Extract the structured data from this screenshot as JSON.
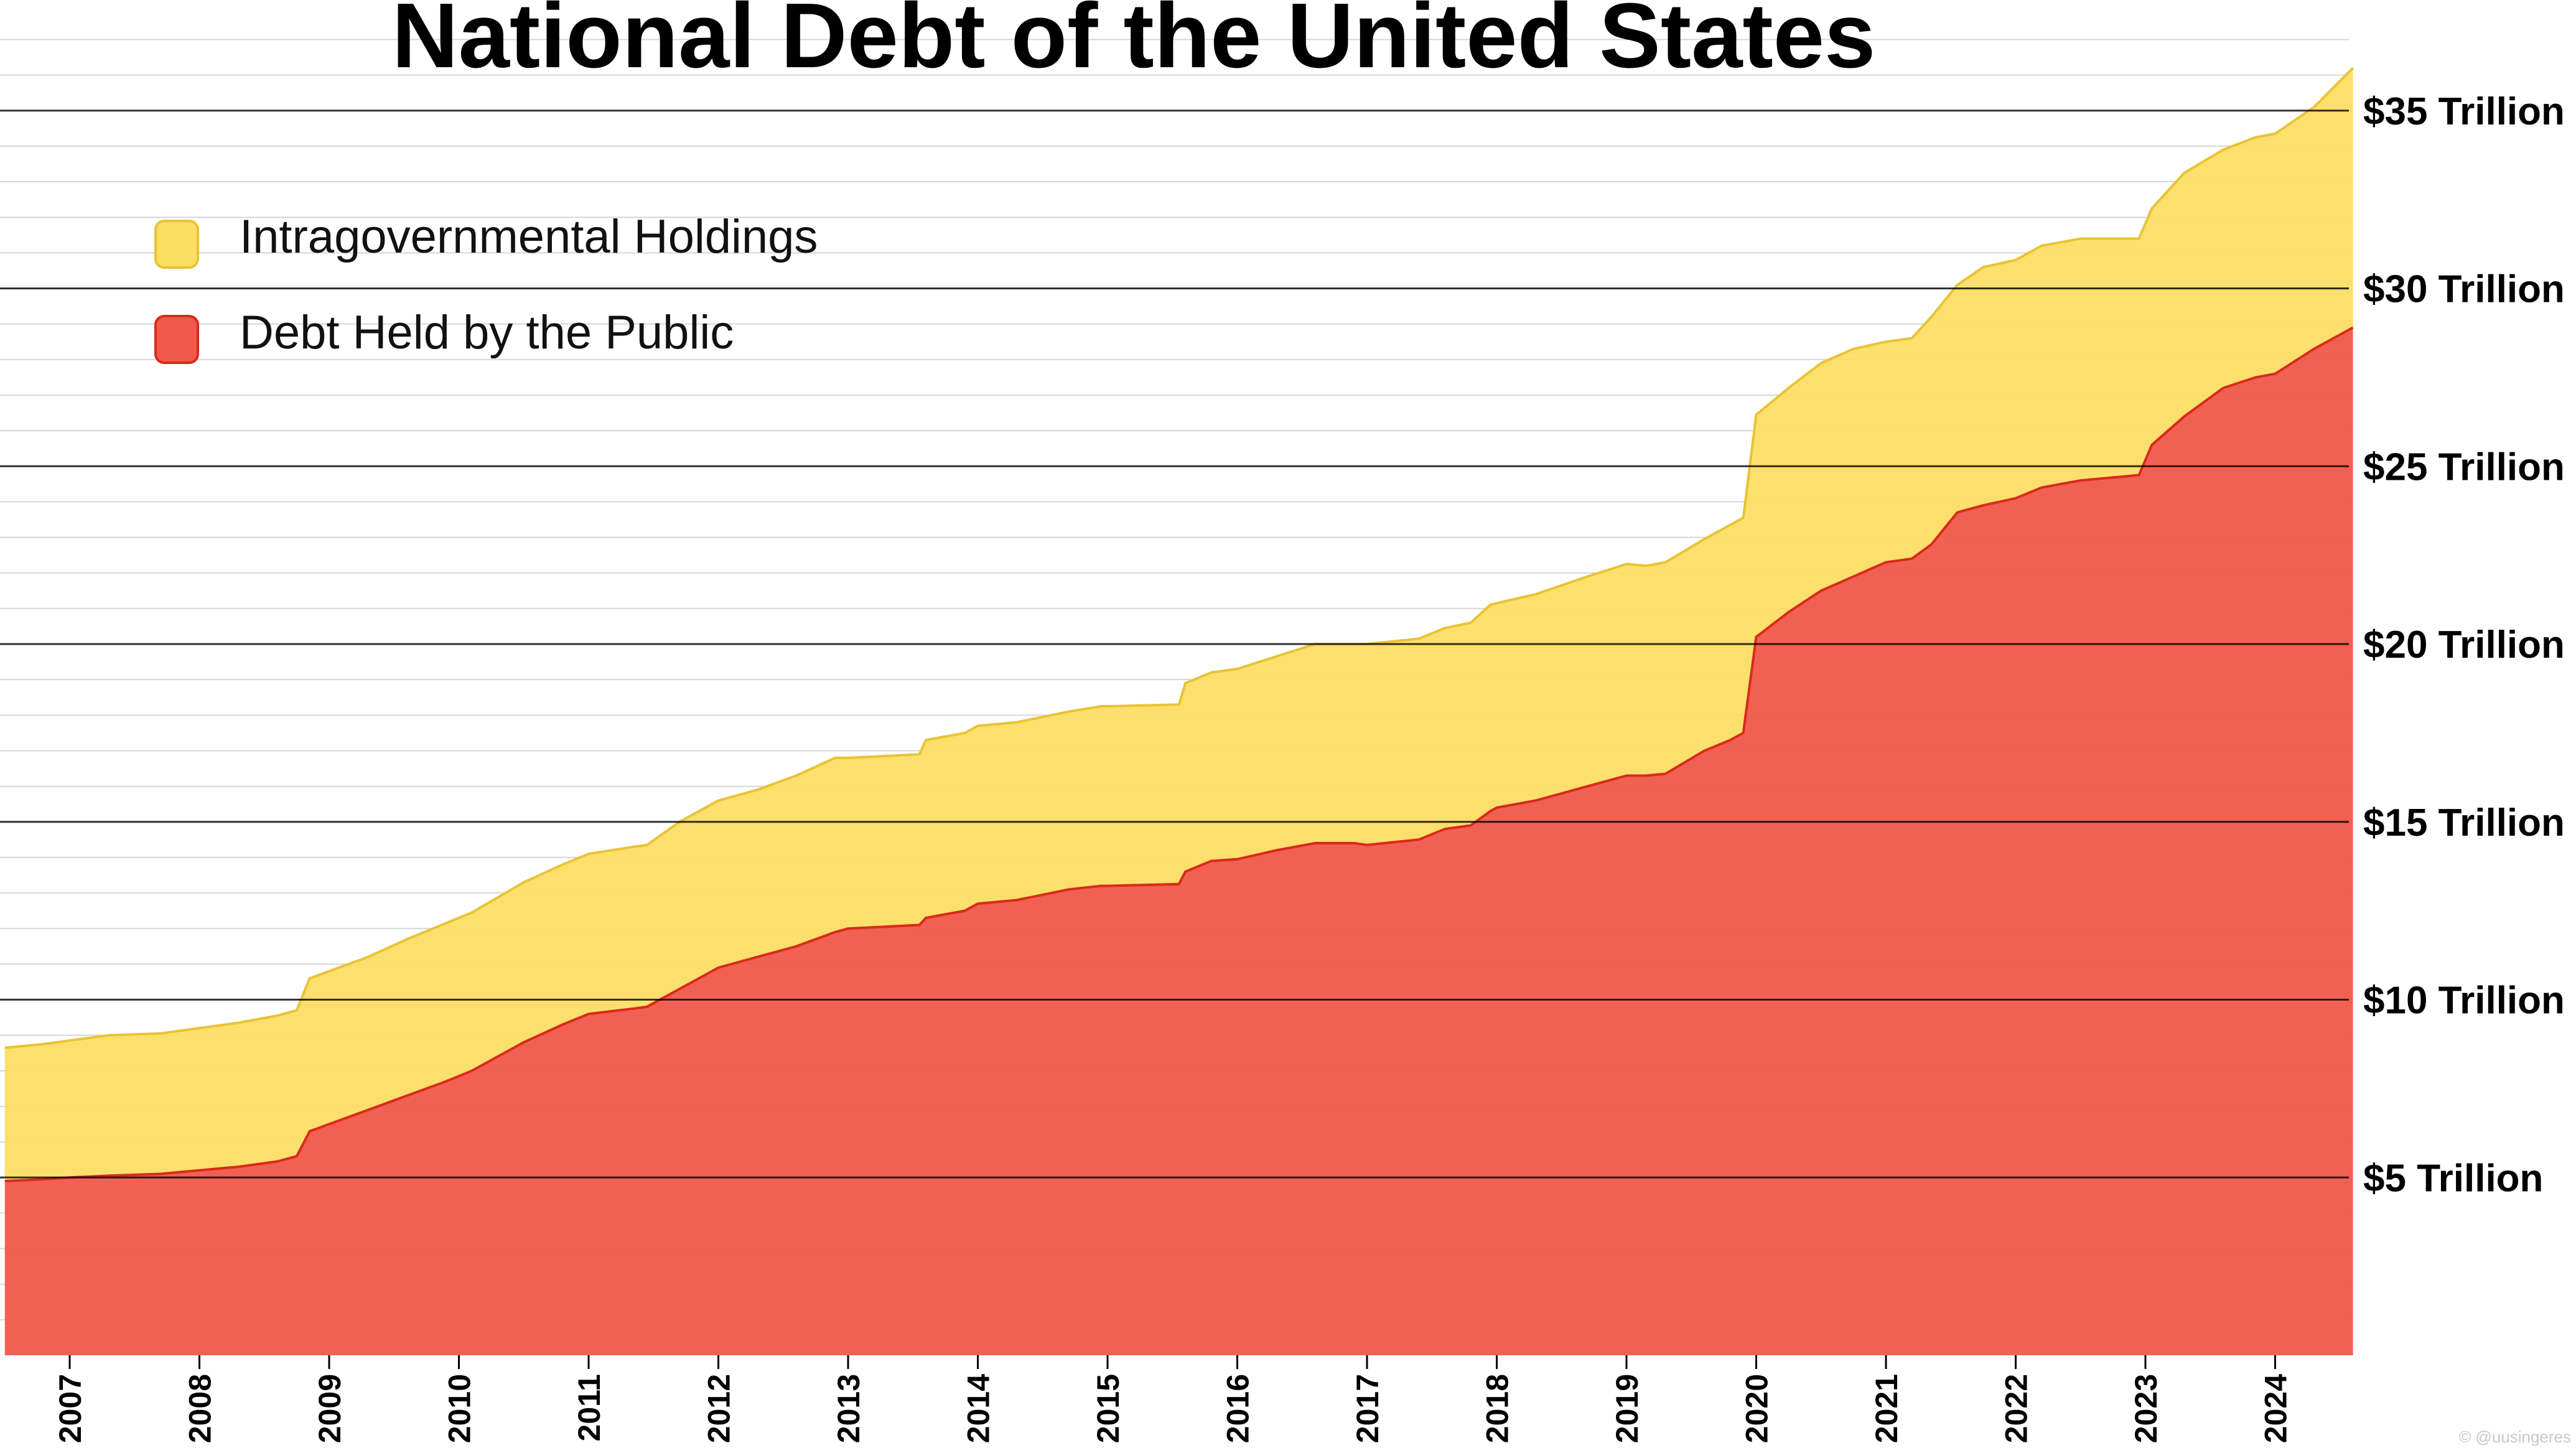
{
  "chart_data": {
    "type": "area",
    "title": "National Debt of the United States",
    "xlabel": "",
    "ylabel": "",
    "xlim": [
      2006.5,
      2024.6
    ],
    "ylim": [
      0,
      37.5
    ],
    "stacked": true,
    "y_unit": "Trillion USD",
    "y_ticks": [
      {
        "value": 5,
        "label": "$5 Trillion"
      },
      {
        "value": 10,
        "label": "$10 Trillion"
      },
      {
        "value": 15,
        "label": "$15 Trillion"
      },
      {
        "value": 20,
        "label": "$20 Trillion"
      },
      {
        "value": 25,
        "label": "$25 Trillion"
      },
      {
        "value": 30,
        "label": "$30 Trillion"
      },
      {
        "value": 35,
        "label": "$35 Trillion"
      }
    ],
    "x_ticks": [
      {
        "value": 2007,
        "label": "2007"
      },
      {
        "value": 2008,
        "label": "2008"
      },
      {
        "value": 2009,
        "label": "2009"
      },
      {
        "value": 2010,
        "label": "2010"
      },
      {
        "value": 2011,
        "label": "2011"
      },
      {
        "value": 2012,
        "label": "2012"
      },
      {
        "value": 2013,
        "label": "2013"
      },
      {
        "value": 2014,
        "label": "2014"
      },
      {
        "value": 2015,
        "label": "2015"
      },
      {
        "value": 2016,
        "label": "2016"
      },
      {
        "value": 2017,
        "label": "2017"
      },
      {
        "value": 2018,
        "label": "2018"
      },
      {
        "value": 2019,
        "label": "2019"
      },
      {
        "value": 2020,
        "label": "2020"
      },
      {
        "value": 2021,
        "label": "2021"
      },
      {
        "value": 2022,
        "label": "2022"
      },
      {
        "value": 2023,
        "label": "2023"
      },
      {
        "value": 2024,
        "label": "2024"
      }
    ],
    "grid": {
      "major_every": 5,
      "minor_every": 1
    },
    "legend": {
      "placement": "top-left"
    },
    "series": [
      {
        "name": "Debt Held by the Public",
        "color": "#F0594A",
        "line_color": "#D92A1A",
        "x": [
          2006.5,
          2006.8,
          2007.0,
          2007.3,
          2007.7,
          2008.0,
          2008.3,
          2008.6,
          2008.75,
          2008.85,
          2009.0,
          2009.3,
          2009.6,
          2009.9,
          2010.1,
          2010.5,
          2010.8,
          2011.0,
          2011.35,
          2011.45,
          2011.7,
          2012.0,
          2012.3,
          2012.6,
          2012.9,
          2013.0,
          2013.55,
          2013.6,
          2013.9,
          2014.0,
          2014.3,
          2014.7,
          2014.95,
          2015.0,
          2015.55,
          2015.6,
          2015.8,
          2016.0,
          2016.3,
          2016.6,
          2016.9,
          2017.0,
          2017.4,
          2017.6,
          2017.8,
          2017.95,
          2018.0,
          2018.3,
          2018.7,
          2019.0,
          2019.15,
          2019.3,
          2019.6,
          2019.8,
          2019.9,
          2020.0,
          2020.25,
          2020.5,
          2020.75,
          2021.0,
          2021.2,
          2021.35,
          2021.55,
          2021.75,
          2022.0,
          2022.2,
          2022.5,
          2022.8,
          2022.95,
          2023.05,
          2023.3,
          2023.6,
          2023.85,
          2024.0,
          2024.3,
          2024.6
        ],
        "values": [
          4.9,
          4.95,
          5.0,
          5.05,
          5.1,
          5.2,
          5.3,
          5.45,
          5.6,
          6.3,
          6.5,
          6.9,
          7.3,
          7.7,
          8.0,
          8.8,
          9.3,
          9.6,
          9.75,
          9.8,
          10.3,
          10.9,
          11.2,
          11.5,
          11.9,
          12.0,
          12.1,
          12.3,
          12.5,
          12.7,
          12.8,
          13.1,
          13.2,
          13.2,
          13.25,
          13.6,
          13.9,
          13.95,
          14.2,
          14.4,
          14.4,
          14.35,
          14.5,
          14.8,
          14.9,
          15.3,
          15.4,
          15.6,
          16.0,
          16.3,
          16.3,
          16.35,
          17.0,
          17.3,
          17.5,
          20.2,
          20.9,
          21.5,
          21.9,
          22.3,
          22.4,
          22.8,
          23.7,
          23.9,
          24.1,
          24.4,
          24.6,
          24.7,
          24.75,
          25.6,
          26.4,
          27.2,
          27.5,
          27.6,
          28.3,
          28.9
        ]
      },
      {
        "name": "Intragovernmental Holdings",
        "color": "#FCDD64",
        "line_color": "#E8C335",
        "x": [
          2006.5,
          2006.8,
          2007.0,
          2007.3,
          2007.7,
          2008.0,
          2008.3,
          2008.6,
          2008.75,
          2008.85,
          2009.0,
          2009.3,
          2009.6,
          2009.9,
          2010.1,
          2010.5,
          2010.8,
          2011.0,
          2011.35,
          2011.45,
          2011.7,
          2012.0,
          2012.3,
          2012.6,
          2012.9,
          2013.0,
          2013.55,
          2013.6,
          2013.9,
          2014.0,
          2014.3,
          2014.7,
          2014.95,
          2015.0,
          2015.55,
          2015.6,
          2015.8,
          2016.0,
          2016.3,
          2016.6,
          2016.9,
          2017.0,
          2017.4,
          2017.6,
          2017.8,
          2017.95,
          2018.0,
          2018.3,
          2018.7,
          2019.0,
          2019.15,
          2019.3,
          2019.6,
          2019.8,
          2019.9,
          2020.0,
          2020.25,
          2020.5,
          2020.75,
          2021.0,
          2021.2,
          2021.35,
          2021.55,
          2021.75,
          2022.0,
          2022.2,
          2022.5,
          2022.8,
          2022.95,
          2023.05,
          2023.3,
          2023.6,
          2023.85,
          2024.0,
          2024.3,
          2024.6
        ],
        "values": [
          3.75,
          3.8,
          3.85,
          3.95,
          3.95,
          4.0,
          4.05,
          4.1,
          4.1,
          4.3,
          4.3,
          4.3,
          4.4,
          4.45,
          4.45,
          4.5,
          4.5,
          4.5,
          4.55,
          4.55,
          4.7,
          4.7,
          4.7,
          4.8,
          4.9,
          4.8,
          4.8,
          5.0,
          5.0,
          5.0,
          5.0,
          5.0,
          5.05,
          5.05,
          5.05,
          5.3,
          5.3,
          5.35,
          5.45,
          5.6,
          5.6,
          5.65,
          5.65,
          5.65,
          5.7,
          5.8,
          5.75,
          5.8,
          5.9,
          5.95,
          5.9,
          5.95,
          5.95,
          6.05,
          6.05,
          6.25,
          6.3,
          6.4,
          6.4,
          6.2,
          6.2,
          6.4,
          6.4,
          6.7,
          6.7,
          6.8,
          6.8,
          6.7,
          6.65,
          6.65,
          6.85,
          6.7,
          6.75,
          6.75,
          6.8,
          7.3
        ]
      }
    ]
  },
  "watermark": "© @uusingeres"
}
